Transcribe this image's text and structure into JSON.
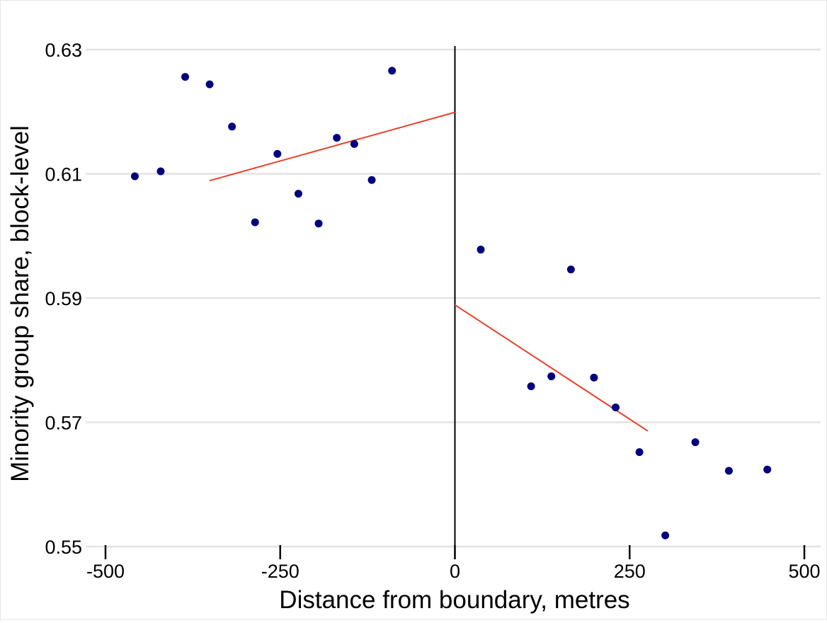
{
  "chart_data": {
    "type": "scatter",
    "title": "",
    "xlabel": "Distance from boundary, metres",
    "ylabel": "Minority group share, block-level",
    "xlim": [
      -500,
      500
    ],
    "ylim": [
      0.55,
      0.63
    ],
    "x_ticks": [
      -500,
      -250,
      0,
      250,
      500
    ],
    "x_tick_labels": [
      "-500",
      "-250",
      "0",
      "250",
      "500"
    ],
    "y_ticks": [
      0.55,
      0.57,
      0.59,
      0.61,
      0.63
    ],
    "y_tick_labels": [
      "0.55",
      "0.57",
      "0.59",
      "0.61",
      "0.63"
    ],
    "grid": "horizontal",
    "legend": "none",
    "cutoff_x": 0,
    "series": [
      {
        "kind": "points",
        "color": "#00007f",
        "points": [
          {
            "x": -458,
            "y": 0.6096
          },
          {
            "x": -421,
            "y": 0.6104
          },
          {
            "x": -386,
            "y": 0.6256
          },
          {
            "x": -351,
            "y": 0.6244
          },
          {
            "x": -319,
            "y": 0.6176
          },
          {
            "x": -286,
            "y": 0.6022
          },
          {
            "x": -254,
            "y": 0.6132
          },
          {
            "x": -224,
            "y": 0.6068
          },
          {
            "x": -195,
            "y": 0.602
          },
          {
            "x": -169,
            "y": 0.6158
          },
          {
            "x": -144,
            "y": 0.6148
          },
          {
            "x": -119,
            "y": 0.609
          },
          {
            "x": -90,
            "y": 0.6266
          },
          {
            "x": 37,
            "y": 0.5978
          },
          {
            "x": 109,
            "y": 0.5758
          },
          {
            "x": 138,
            "y": 0.5774
          },
          {
            "x": 166,
            "y": 0.5946
          },
          {
            "x": 199,
            "y": 0.5772
          },
          {
            "x": 230,
            "y": 0.5724
          },
          {
            "x": 264,
            "y": 0.5652
          },
          {
            "x": 301,
            "y": 0.5518
          },
          {
            "x": 344,
            "y": 0.5668
          },
          {
            "x": 392,
            "y": 0.5622
          },
          {
            "x": 447,
            "y": 0.5624
          }
        ]
      },
      {
        "kind": "fit-line",
        "color": "#e8412b",
        "segments": [
          {
            "x": [
              -351,
              0
            ],
            "y": [
              0.6089,
              0.6199
            ]
          },
          {
            "x": [
              0,
              276
            ],
            "y": [
              0.5889,
              0.5686
            ]
          }
        ]
      }
    ]
  }
}
